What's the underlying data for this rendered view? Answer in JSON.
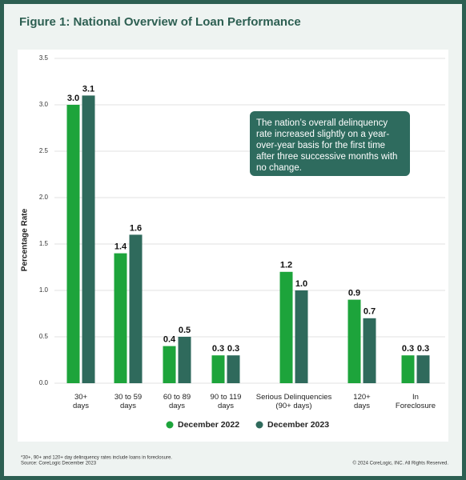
{
  "chart_data": {
    "type": "bar",
    "title": "Figure 1: National Overview of Loan Performance",
    "y_label": "Percentage Rate",
    "categories": [
      "30+\ndays",
      "30 to 59\ndays",
      "60 to 89\ndays",
      "90 to 119\ndays",
      "Serious Delinquencies\n(90+ days)",
      "120+\ndays",
      "In\nForeclosure"
    ],
    "series": [
      {
        "name": "December 2022",
        "color": "#1da43b",
        "values": [
          3.0,
          1.4,
          0.4,
          0.3,
          1.2,
          0.9,
          0.3
        ],
        "value_labels": [
          "3.0",
          "1.4",
          "0.4",
          "0.3",
          "1.2",
          "0.9",
          "0.3"
        ]
      },
      {
        "name": "December 2023",
        "color": "#2f6a5c",
        "values": [
          3.1,
          1.6,
          0.5,
          0.3,
          1.0,
          0.7,
          0.3
        ],
        "value_labels": [
          "3.1",
          "1.6",
          "0.5",
          "0.3",
          "1.0",
          "0.7",
          "0.3"
        ]
      }
    ],
    "ylim": [
      0,
      3.5
    ],
    "yticks": [
      {
        "value": 0,
        "label": "0.0"
      },
      0.5,
      {
        "value": 1,
        "label": "1.0"
      },
      1.5,
      {
        "value": 2,
        "label": "2.0"
      },
      2.5,
      {
        "value": 3,
        "label": "3.0"
      },
      3.5
    ],
    "grid": true,
    "annotation": "The nation’s overall delinquency rate increased slightly on a year-over-year basis for the first time after three successive months with no change.",
    "footnote": "*30+, 90+ and 120+ day delinquency rates include loans in foreclosure.",
    "source": "Source: CoreLogic December 2023",
    "copyright": "© 2024 CoreLogic, INC. All Rights Reserved."
  }
}
